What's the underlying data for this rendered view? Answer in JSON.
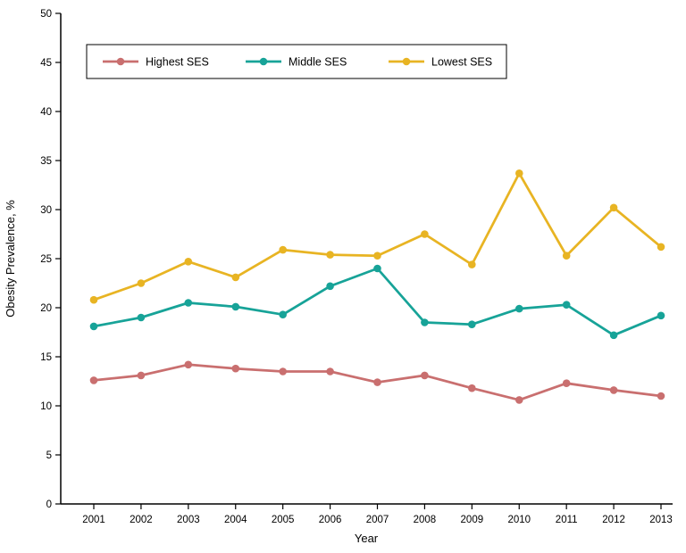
{
  "chart_data": {
    "type": "line",
    "title": "",
    "xlabel": "Year",
    "ylabel": "Obesity Prevalence, %",
    "x": [
      2001,
      2002,
      2003,
      2004,
      2005,
      2006,
      2007,
      2008,
      2009,
      2010,
      2011,
      2012,
      2013
    ],
    "ylim": [
      0,
      50
    ],
    "yticks": [
      0,
      5,
      10,
      15,
      20,
      25,
      30,
      35,
      40,
      45,
      50
    ],
    "grid": false,
    "legend_position": "top-left-inside",
    "series": [
      {
        "name": "Highest SES",
        "color": "#c96f6f",
        "values": [
          12.6,
          13.1,
          14.2,
          13.8,
          13.5,
          13.5,
          12.4,
          13.1,
          11.8,
          10.6,
          12.3,
          11.6,
          11.0
        ]
      },
      {
        "name": "Middle SES",
        "color": "#17a398",
        "values": [
          18.1,
          19.0,
          20.5,
          20.1,
          19.3,
          22.2,
          24.0,
          18.5,
          18.3,
          19.9,
          20.3,
          17.2,
          19.2
        ]
      },
      {
        "name": "Lowest SES",
        "color": "#e8b423",
        "values": [
          20.8,
          22.5,
          24.7,
          23.1,
          25.9,
          25.4,
          25.3,
          27.5,
          24.4,
          33.7,
          25.3,
          30.2,
          26.2
        ]
      }
    ]
  }
}
